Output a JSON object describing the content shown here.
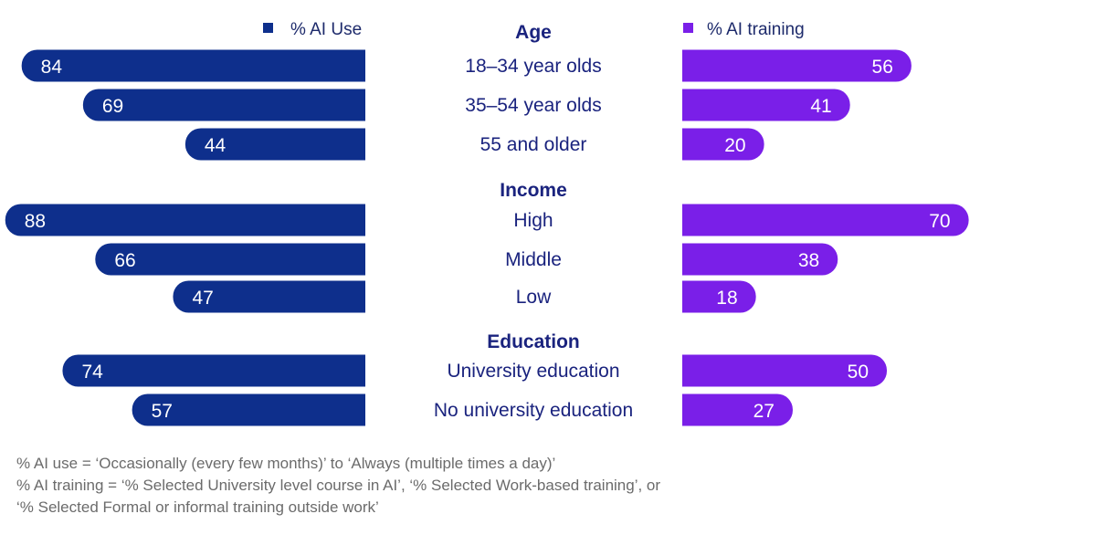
{
  "legend": {
    "left_label": "% AI Use",
    "right_label": "% AI training"
  },
  "colors": {
    "ai_use": "#0e2f8c",
    "ai_training": "#7a1fe8",
    "title_text": "#1a237e",
    "footnote_text": "#6b6b6b"
  },
  "chart_data": {
    "type": "bar",
    "orientation": "horizontal-butterfly",
    "series": [
      {
        "name": "% AI Use",
        "side": "left"
      },
      {
        "name": "% AI training",
        "side": "right"
      }
    ],
    "groups": [
      {
        "title": "Age",
        "categories": [
          "18–34 year olds",
          "35–54 year olds",
          "55 and older"
        ],
        "ai_use": [
          84,
          69,
          44
        ],
        "ai_training": [
          56,
          41,
          20
        ]
      },
      {
        "title": "Income",
        "categories": [
          "High",
          "Middle",
          "Low"
        ],
        "ai_use": [
          88,
          66,
          47
        ],
        "ai_training": [
          70,
          38,
          18
        ]
      },
      {
        "title": "Education",
        "categories": [
          "University education",
          "No university education"
        ],
        "ai_use": [
          74,
          57
        ],
        "ai_training": [
          50,
          27
        ]
      }
    ]
  },
  "footnote": {
    "line1": "% AI use = ‘Occasionally (every few months)’ to ‘Always (multiple times a day)’",
    "line2": "% AI training = ‘% Selected University level course in AI’, ‘% Selected Work-based training’, or",
    "line3": "‘% Selected Formal or informal training outside work’"
  }
}
